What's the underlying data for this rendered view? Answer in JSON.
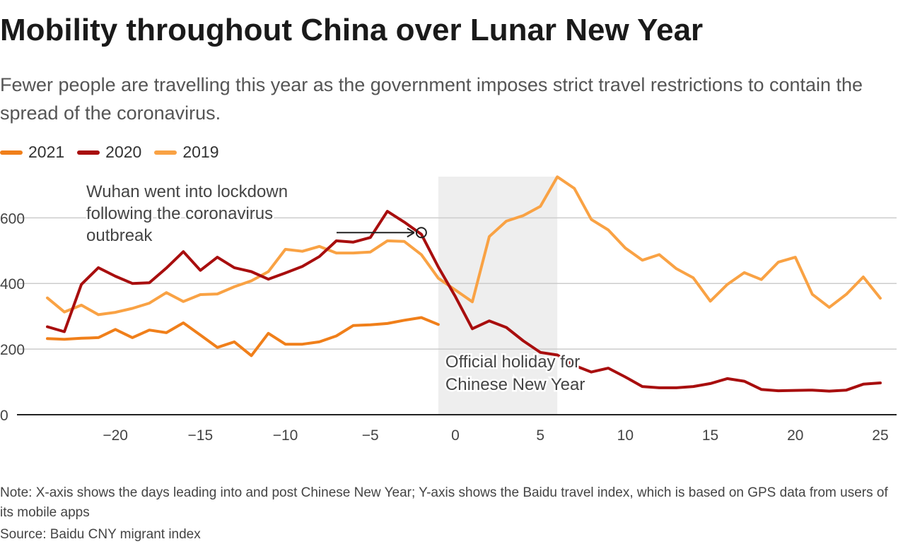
{
  "title": "Mobility throughout China over Lunar New Year",
  "subtitle": "Fewer people are travelling this year as the government imposes strict travel restrictions to contain the spread of the coronavirus.",
  "note": "Note: X-axis shows the days leading into and post Chinese New Year; Y-axis shows the Baidu travel index, which is based on GPS data from users of its mobile apps",
  "source": "Source: Baidu CNY migrant index",
  "colors": {
    "s2021": "#f07f1a",
    "s2020": "#a80e0e",
    "s2019": "#f9a244",
    "grid": "#cccccc",
    "axis": "#222222",
    "band": "#eeeeee"
  },
  "chart_data": {
    "type": "line",
    "title": "Mobility throughout China over Lunar New Year",
    "xlabel": "",
    "ylabel": "",
    "xlim": [
      -24,
      25
    ],
    "ylim": [
      0,
      725
    ],
    "x_ticks": [
      -20,
      -15,
      -10,
      -5,
      0,
      5,
      10,
      15,
      20,
      25
    ],
    "x_tick_labels": [
      "−20",
      "−15",
      "−10",
      "−5",
      "0",
      "5",
      "10",
      "15",
      "20",
      "25"
    ],
    "y_ticks": [
      0,
      200,
      400,
      600
    ],
    "y_tick_labels": [
      "0",
      "200",
      "400",
      "600"
    ],
    "grid": true,
    "legend_position": "top-left",
    "series": [
      {
        "name": "2021",
        "color": "#f07f1a",
        "x": [
          -24,
          -23,
          -22,
          -21,
          -20,
          -19,
          -18,
          -17,
          -16,
          -15,
          -14,
          -13,
          -12,
          -11,
          -10,
          -9,
          -8,
          -7,
          -6,
          -5,
          -4,
          -3,
          -2,
          -1
        ],
        "values": [
          232,
          230,
          233,
          235,
          260,
          235,
          258,
          250,
          280,
          243,
          205,
          222,
          180,
          248,
          215,
          215,
          222,
          240,
          272,
          274,
          278,
          288,
          296,
          275
        ]
      },
      {
        "name": "2020",
        "color": "#a80e0e",
        "x": [
          -24,
          -23,
          -22,
          -21,
          -20,
          -19,
          -18,
          -17,
          -16,
          -15,
          -14,
          -13,
          -12,
          -11,
          -10,
          -9,
          -8,
          -7,
          -6,
          -5,
          -4,
          -3,
          -2,
          -1,
          0,
          1,
          2,
          3,
          4,
          5,
          6,
          7,
          8,
          9,
          10,
          11,
          12,
          13,
          14,
          15,
          16,
          17,
          18,
          19,
          20,
          21,
          22,
          23,
          24,
          25
        ],
        "values": [
          268,
          253,
          397,
          448,
          422,
          400,
          402,
          447,
          497,
          440,
          480,
          448,
          436,
          413,
          432,
          452,
          482,
          530,
          526,
          540,
          620,
          587,
          550,
          450,
          360,
          262,
          286,
          266,
          225,
          190,
          182,
          150,
          130,
          142,
          115,
          86,
          82,
          82,
          86,
          95,
          110,
          102,
          77,
          73,
          74,
          75,
          72,
          75,
          93,
          97
        ]
      },
      {
        "name": "2019",
        "color": "#f9a244",
        "x": [
          -24,
          -23,
          -22,
          -21,
          -20,
          -19,
          -18,
          -17,
          -16,
          -15,
          -14,
          -13,
          -12,
          -11,
          -10,
          -9,
          -8,
          -7,
          -6,
          -5,
          -4,
          -3,
          -2,
          -1,
          0,
          1,
          2,
          3,
          4,
          5,
          6,
          7,
          8,
          9,
          10,
          11,
          12,
          13,
          14,
          15,
          16,
          17,
          18,
          19,
          20,
          21,
          22,
          23,
          24,
          25
        ],
        "values": [
          356,
          313,
          334,
          305,
          312,
          324,
          340,
          372,
          345,
          366,
          368,
          390,
          408,
          436,
          504,
          498,
          513,
          493,
          493,
          496,
          530,
          528,
          488,
          416,
          380,
          344,
          543,
          590,
          607,
          635,
          725,
          690,
          595,
          563,
          508,
          471,
          488,
          445,
          417,
          346,
          397,
          433,
          412,
          465,
          480,
          367,
          327,
          367,
          420,
          355
        ]
      }
    ],
    "shaded_region": {
      "x_start": -1,
      "x_end": 6,
      "label_lines": [
        "Official holiday for",
        "Chinese New Year"
      ]
    },
    "annotation": {
      "lines": [
        "Wuhan went into lockdown",
        "following the coronavirus",
        "outbreak"
      ],
      "x": -2,
      "y": 555
    }
  }
}
